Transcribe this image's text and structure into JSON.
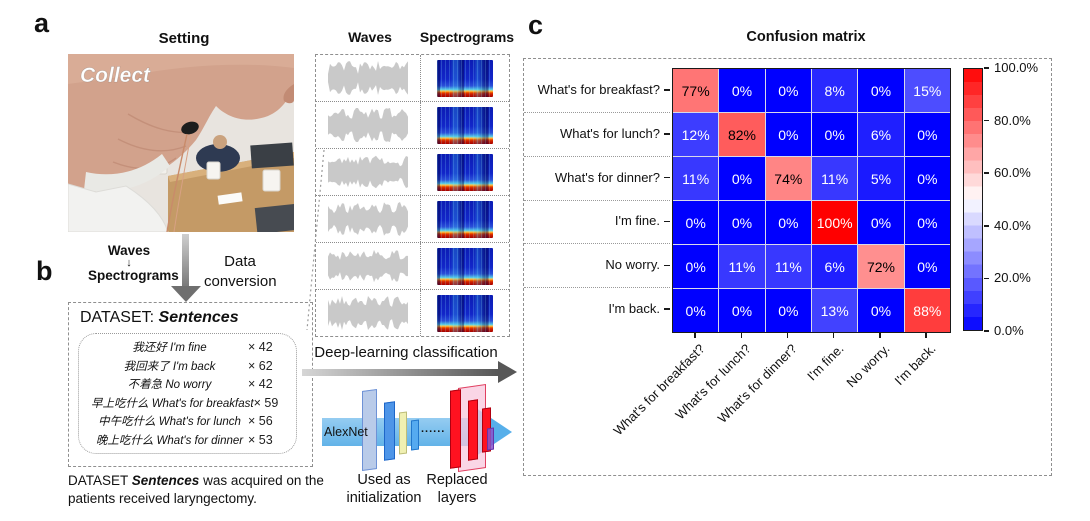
{
  "panel_a": {
    "label": "a",
    "title": "Setting",
    "photo_caption": "Collect",
    "waves_to_spectrograms": {
      "line1": "Waves",
      "arrow": "↓",
      "line2": "Spectrograms"
    },
    "data_conversion_label": "Data conversion"
  },
  "panel_b": {
    "label": "b",
    "dataset_title": {
      "prefix": "DATASET:",
      "name": "Sentences"
    },
    "sentences": [
      {
        "chinese": "我还好",
        "english": "I'm fine",
        "count": "× 42"
      },
      {
        "chinese": "我回来了",
        "english": "I'm back",
        "count": "× 62"
      },
      {
        "chinese": "不着急",
        "english": "No worry",
        "count": "× 42"
      },
      {
        "chinese": "早上吃什么",
        "english": "What's for breakfast",
        "count": "× 59"
      },
      {
        "chinese": "中午吃什么",
        "english": "What's for lunch",
        "count": "× 56"
      },
      {
        "chinese": "晚上吃什么",
        "english": "What's for dinner",
        "count": "× 53"
      }
    ],
    "caption": {
      "pre": "DATASET",
      "name": "Sentences",
      "post": "was acquired on the patients received laryngectomy."
    }
  },
  "pipeline": {
    "waves_header": "Waves",
    "spectrograms_header": "Spectrograms",
    "sample_rows": 6,
    "classification_label": "Deep-learning classification",
    "alexnet_label": "AlexNet",
    "ellipsis": "......",
    "init_label": "Used as initialization",
    "replaced_label": "Replaced layers"
  },
  "panel_c": {
    "label": "c",
    "title": "Confusion matrix"
  },
  "chart_data": {
    "type": "heatmap",
    "title": "Confusion matrix",
    "row_labels": [
      "What's for breakfast?",
      "What's for lunch?",
      "What's for dinner?",
      "I'm fine.",
      "No worry.",
      "I'm back."
    ],
    "col_labels": [
      "What's for breakfast?",
      "What's for lunch?",
      "What's for dinner?",
      "I'm fine.",
      "No worry.",
      "I'm back."
    ],
    "values_percent": [
      [
        77,
        0,
        0,
        8,
        0,
        15
      ],
      [
        12,
        82,
        0,
        0,
        6,
        0
      ],
      [
        11,
        0,
        74,
        11,
        5,
        0
      ],
      [
        0,
        0,
        0,
        100,
        0,
        0
      ],
      [
        0,
        11,
        11,
        6,
        72,
        0
      ],
      [
        0,
        0,
        0,
        13,
        0,
        88
      ]
    ],
    "cell_suffix": "%",
    "colormap": {
      "style": "blue-white-red",
      "low": "#0000ff",
      "mid": "#ffffff",
      "high": "#ff0000"
    },
    "colorbar": {
      "ticks": [
        "100.0%",
        "80.0%",
        "60.0%",
        "40.0%",
        "20.0%",
        "0.0%"
      ],
      "min": 0,
      "max": 100,
      "position": "right"
    },
    "axes": {
      "grid": false,
      "x_label_rotation": 45
    }
  }
}
